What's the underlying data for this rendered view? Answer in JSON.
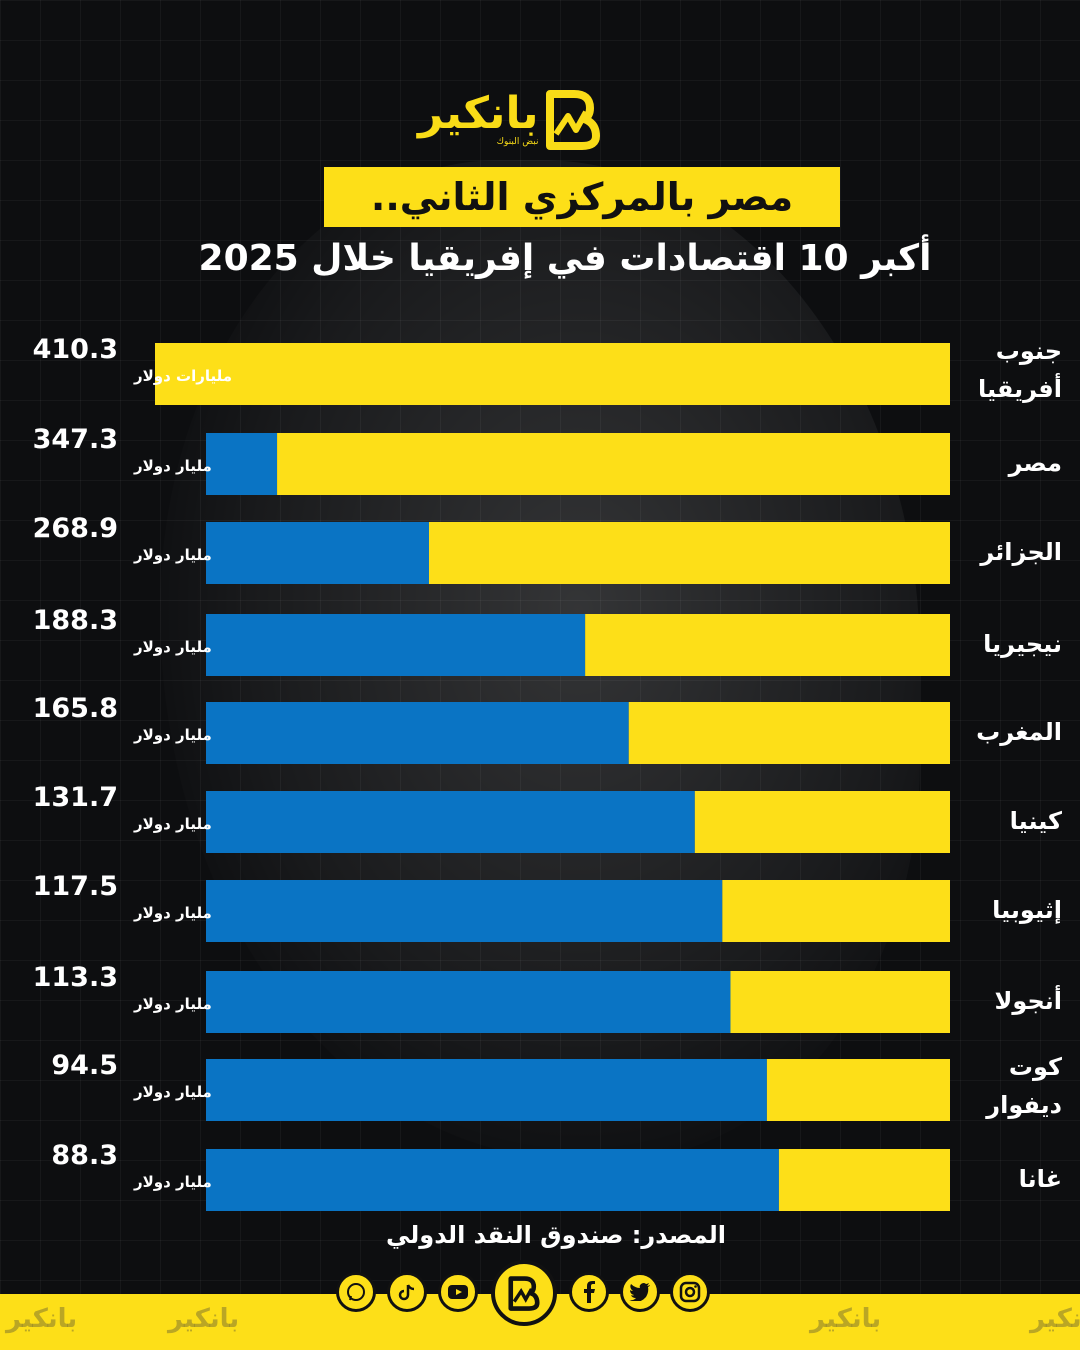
{
  "brand": {
    "name": "بانكير",
    "tagline": "نبض البنوك"
  },
  "title": "مصر بالمركزي الثاني..",
  "subtitle": "أكبر 10 اقتصادات في إفريقيا خلال 2025",
  "source": "المصدر: صندوق النقد الدولي",
  "colors": {
    "background": "#0d0e10",
    "bar_yellow": "#fddf18",
    "bar_blue": "#0a74c4",
    "text": "#ffffff"
  },
  "social_icons": [
    "whatsapp-icon",
    "tiktok-icon",
    "youtube-icon",
    "brand-logo-icon",
    "facebook-icon",
    "twitter-icon",
    "instagram-icon"
  ],
  "chart_data": {
    "type": "bar",
    "orientation": "horizontal",
    "categories": [
      [
        "جنوب",
        "أفريقيا"
      ],
      [
        "مصر"
      ],
      [
        "الجزائر"
      ],
      [
        "نيجيريا"
      ],
      [
        "المغرب"
      ],
      [
        "كينيا"
      ],
      [
        "إثيوبيا"
      ],
      [
        "أنجولا"
      ],
      [
        "كوت",
        "ديفوار"
      ],
      [
        "غانا"
      ]
    ],
    "values": [
      410.3,
      347.3,
      268.9,
      188.3,
      165.8,
      131.7,
      117.5,
      113.3,
      94.5,
      88.3
    ],
    "value_labels": [
      "410.3",
      "347.3",
      "268.9",
      "188.3",
      "165.8",
      "131.7",
      "117.5",
      "113.3",
      "94.5",
      "88.3"
    ],
    "unit_labels": [
      "مليارات دولار",
      "مليار دولار",
      "مليار دولار",
      "مليار دولار",
      "مليار دولار",
      "مليار دولار",
      "مليار دولار",
      "مليار دولار",
      "مليار دولار",
      "مليار دولار"
    ],
    "max_value": 410.3
  }
}
